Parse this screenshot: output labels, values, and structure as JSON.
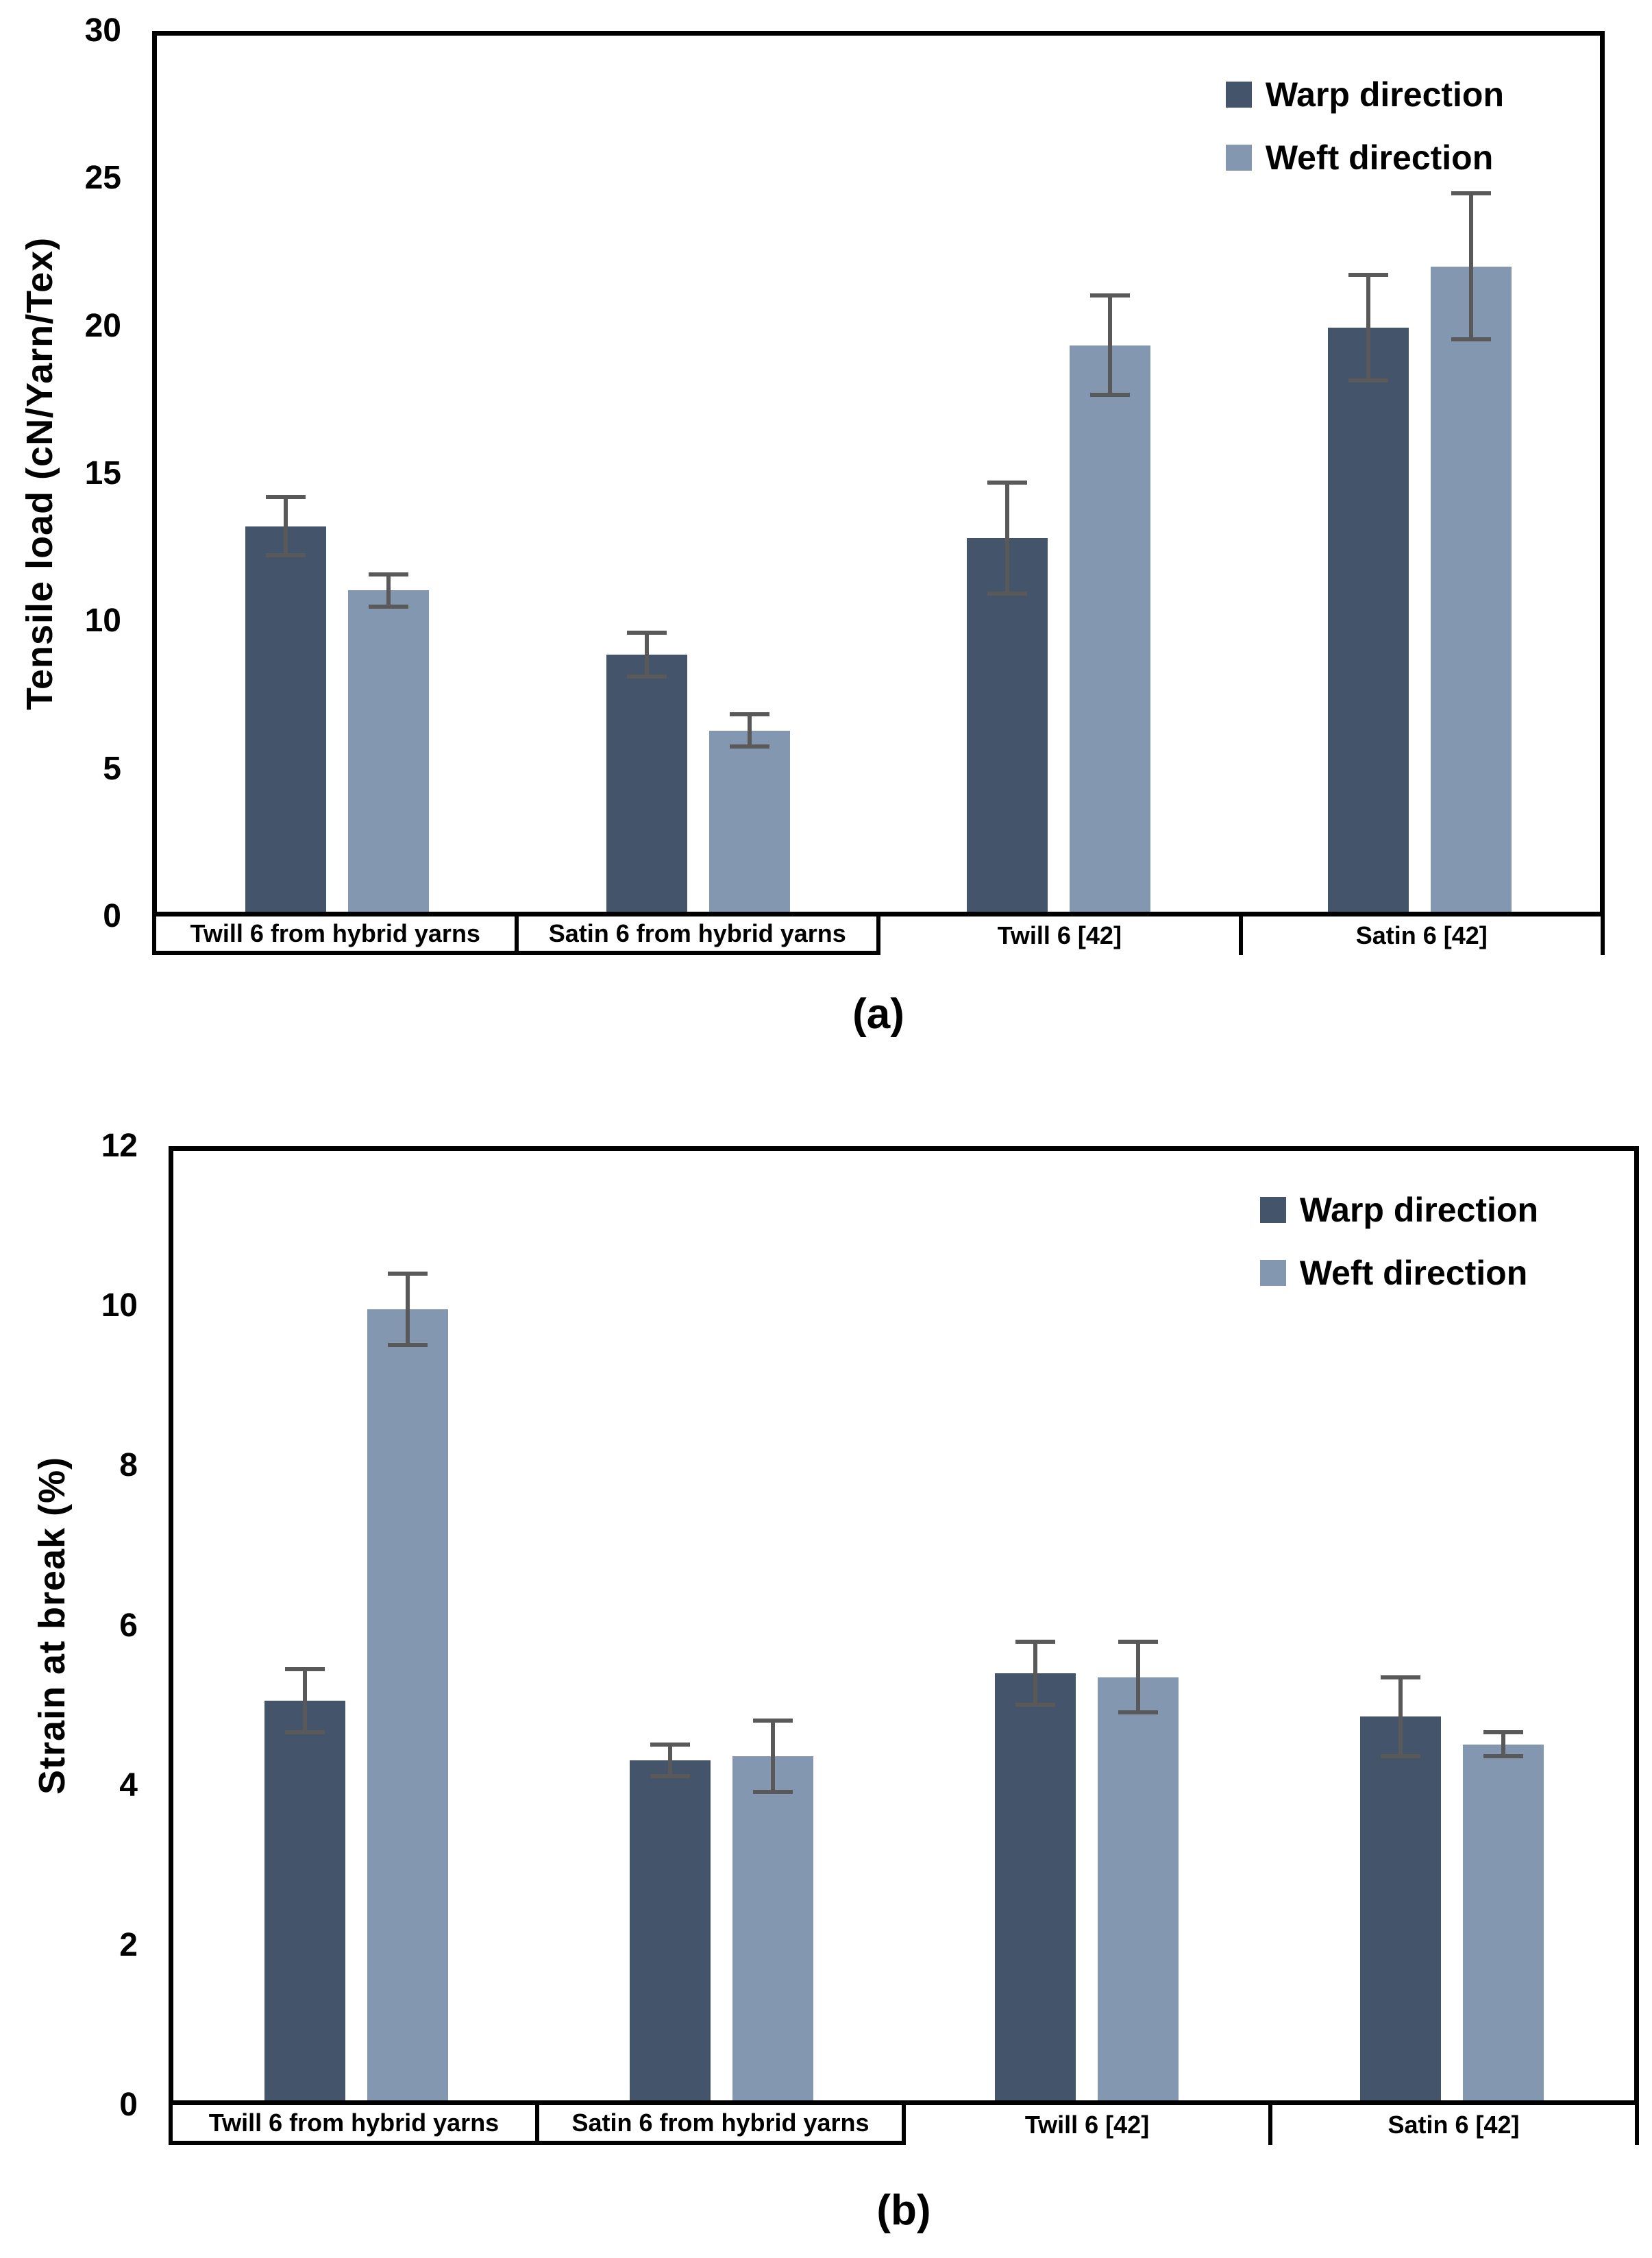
{
  "colors": {
    "warp": "#44546A",
    "weft": "#8497B0",
    "error_bar": "#595959",
    "axis": "#000000",
    "background": "#FFFFFF"
  },
  "chart_data": [
    {
      "type": "bar",
      "caption": "(a)",
      "ylabel": "Tensile load (cN/Yarn/Tex)",
      "xlabel": "",
      "ylim": [
        0,
        30
      ],
      "yticks": [
        0,
        5,
        10,
        15,
        20,
        25,
        30
      ],
      "grid": "off",
      "legend_position": "top-right",
      "categories": [
        "Twill 6 from  hybrid yarns",
        "Satin 6 from hybrid yarns",
        "Twill 6 [42]",
        "Satin 6 [42]"
      ],
      "series": [
        {
          "name": "Warp direction",
          "color": "#44546A",
          "values": [
            13.2,
            8.8,
            12.8,
            20.0
          ],
          "errors": [
            1.0,
            0.75,
            1.9,
            1.8
          ]
        },
        {
          "name": "Weft direction",
          "color": "#8497B0",
          "values": [
            11.0,
            6.2,
            19.4,
            22.1
          ],
          "errors": [
            0.55,
            0.55,
            1.7,
            2.5
          ]
        }
      ]
    },
    {
      "type": "bar",
      "caption": "(b)",
      "ylabel": "Strain at break (%)",
      "xlabel": "",
      "ylim": [
        0,
        12
      ],
      "yticks": [
        0,
        2,
        4,
        6,
        8,
        10,
        12
      ],
      "grid": "off",
      "legend_position": "top-right",
      "categories": [
        "Twill 6 from  hybrid yarns",
        "Satin 6 from hybrid yarns",
        "Twill 6 [42]",
        "Satin 6 [42]"
      ],
      "series": [
        {
          "name": "Warp direction",
          "color": "#44546A",
          "values": [
            5.05,
            4.3,
            5.4,
            4.85
          ],
          "errors": [
            0.4,
            0.2,
            0.4,
            0.5
          ]
        },
        {
          "name": "Weft direction",
          "color": "#8497B0",
          "values": [
            10.0,
            4.35,
            5.35,
            4.5
          ],
          "errors": [
            0.45,
            0.45,
            0.45,
            0.15
          ]
        }
      ]
    }
  ]
}
